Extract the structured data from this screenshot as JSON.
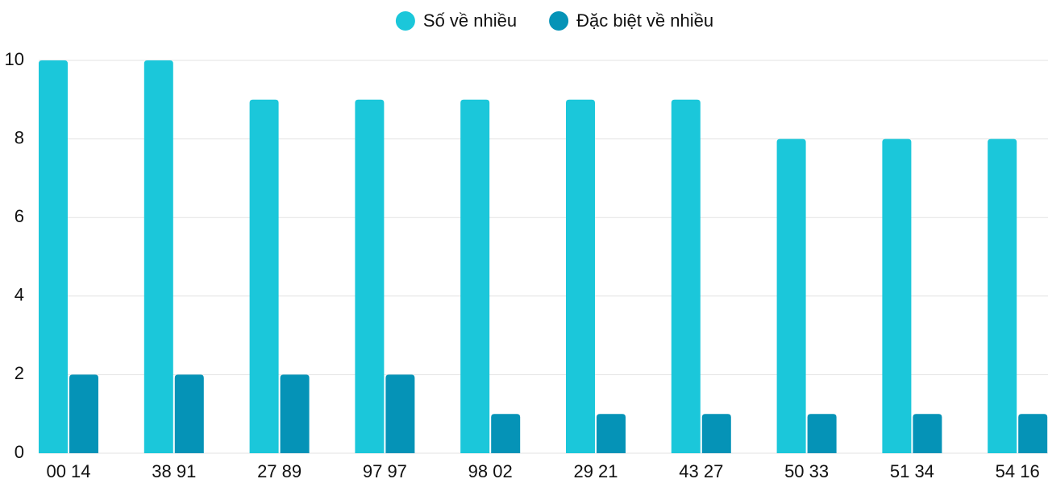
{
  "chart_data": {
    "type": "bar",
    "categories": [
      "00 14",
      "38 91",
      "27 89",
      "97 97",
      "98 02",
      "29 21",
      "43 27",
      "50 33",
      "51 34",
      "54 16"
    ],
    "series": [
      {
        "name": "Số về nhiều",
        "color": "#1bc7da",
        "values": [
          10,
          10,
          9,
          9,
          9,
          9,
          9,
          8,
          8,
          8
        ]
      },
      {
        "name": "Đặc biệt về nhiều",
        "color": "#0593b7",
        "values": [
          2,
          2,
          2,
          2,
          1,
          1,
          1,
          1,
          1,
          1
        ]
      }
    ],
    "ylim": [
      0,
      10
    ],
    "yticks": [
      0,
      2,
      4,
      6,
      8,
      10
    ],
    "grid": true,
    "legend": "top"
  }
}
